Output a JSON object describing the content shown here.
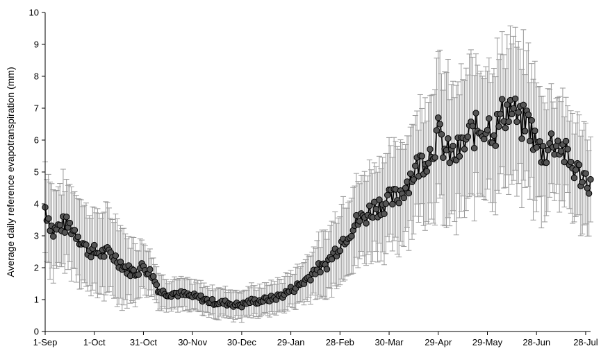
{
  "chart_data": {
    "type": "line",
    "xlabel": "",
    "ylabel": "Average daily reference evapotranspiration (mm)",
    "x_tick_labels": [
      "1-Sep",
      "1-Oct",
      "31-Oct",
      "30-Nov",
      "30-Dec",
      "29-Jan",
      "28-Feb",
      "30-Mar",
      "29-Apr",
      "29-May",
      "28-Jun",
      "28-Jul"
    ],
    "x_tick_days": [
      0,
      30,
      60,
      90,
      120,
      150,
      180,
      210,
      240,
      270,
      300,
      330
    ],
    "xlim": [
      0,
      333
    ],
    "ylim": [
      0,
      10
    ],
    "y_ticks": [
      0,
      1,
      2,
      3,
      4,
      5,
      6,
      7,
      8,
      9,
      10
    ],
    "grid": false,
    "error_bars": true,
    "marker_color": "#555555",
    "line_color": "#000000",
    "errorbar_color": "#999999",
    "anchors": {
      "day": [
        0,
        5,
        10,
        15,
        20,
        25,
        30,
        35,
        40,
        45,
        50,
        55,
        60,
        65,
        70,
        75,
        80,
        85,
        90,
        95,
        100,
        105,
        110,
        115,
        120,
        125,
        130,
        135,
        140,
        145,
        150,
        155,
        160,
        165,
        170,
        175,
        180,
        185,
        190,
        195,
        200,
        205,
        210,
        215,
        220,
        225,
        230,
        235,
        240,
        245,
        250,
        255,
        260,
        265,
        270,
        275,
        280,
        285,
        290,
        295,
        300,
        305,
        310,
        315,
        320,
        325,
        330,
        333
      ],
      "mean": [
        3.9,
        3.1,
        3.35,
        3.3,
        3.05,
        2.6,
        2.5,
        2.45,
        2.45,
        2.2,
        1.95,
        1.85,
        2.05,
        1.8,
        1.25,
        1.2,
        1.2,
        1.15,
        1.1,
        1.05,
        0.95,
        0.9,
        0.9,
        0.85,
        0.82,
        0.95,
        0.95,
        1.0,
        1.05,
        1.15,
        1.3,
        1.45,
        1.65,
        1.95,
        2.0,
        2.35,
        2.75,
        3.1,
        3.4,
        3.6,
        3.85,
        4.0,
        4.1,
        4.2,
        4.6,
        5.0,
        5.35,
        5.6,
        6.2,
        5.6,
        5.5,
        5.8,
        6.2,
        6.35,
        6.5,
        6.3,
        6.9,
        7.0,
        6.5,
        6.6,
        5.8,
        5.6,
        6.0,
        5.8,
        5.3,
        5.0,
        4.8,
        4.7
      ],
      "error": [
        1.4,
        1.35,
        1.3,
        1.3,
        1.25,
        1.25,
        1.25,
        1.3,
        1.25,
        1.2,
        1.0,
        0.9,
        0.8,
        0.7,
        0.5,
        0.45,
        0.45,
        0.45,
        0.45,
        0.45,
        0.45,
        0.45,
        0.45,
        0.45,
        0.45,
        0.45,
        0.45,
        0.45,
        0.5,
        0.5,
        0.55,
        0.6,
        0.7,
        0.85,
        0.95,
        1.05,
        1.15,
        1.2,
        1.25,
        1.3,
        1.4,
        1.45,
        1.5,
        1.55,
        1.55,
        1.6,
        1.75,
        1.9,
        2.2,
        2.25,
        2.1,
        2.0,
        2.1,
        2.1,
        2.1,
        2.1,
        2.1,
        2.1,
        2.1,
        2.0,
        2.0,
        1.8,
        1.6,
        1.6,
        1.55,
        1.5,
        1.4,
        1.4
      ]
    }
  }
}
